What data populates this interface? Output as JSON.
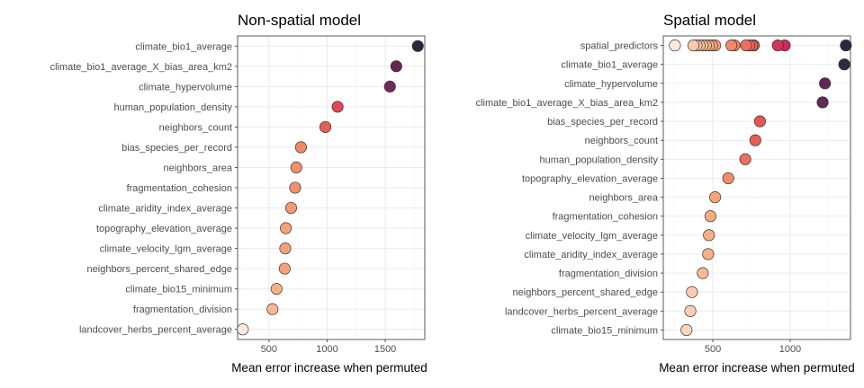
{
  "chart_data": [
    {
      "type": "scatter",
      "title": "Non-spatial model",
      "xlabel": "Mean error increase when permuted",
      "ylabel": "",
      "xlim": [
        230,
        1840
      ],
      "xticks": [
        500,
        1000,
        1500
      ],
      "grid": true,
      "categories": [
        "climate_bio1_average",
        "climate_bio1_average_X_bias_area_km2",
        "climate_hypervolume",
        "human_population_density",
        "neighbors_count",
        "bias_species_per_record",
        "neighbors_area",
        "fragmentation_cohesion",
        "climate_aridity_index_average",
        "topography_elevation_average",
        "climate_velocity_lgm_average",
        "neighbors_percent_shared_edge",
        "climate_bio15_minimum",
        "fragmentation_division",
        "landcover_herbs_percent_average"
      ],
      "points": [
        {
          "y": "climate_bio1_average",
          "x": 1780
        },
        {
          "y": "climate_bio1_average_X_bias_area_km2",
          "x": 1595
        },
        {
          "y": "climate_hypervolume",
          "x": 1540
        },
        {
          "y": "human_population_density",
          "x": 1090
        },
        {
          "y": "neighbors_count",
          "x": 985
        },
        {
          "y": "bias_species_per_record",
          "x": 775
        },
        {
          "y": "neighbors_area",
          "x": 735
        },
        {
          "y": "fragmentation_cohesion",
          "x": 725
        },
        {
          "y": "climate_aridity_index_average",
          "x": 690
        },
        {
          "y": "topography_elevation_average",
          "x": 645
        },
        {
          "y": "climate_velocity_lgm_average",
          "x": 640
        },
        {
          "y": "neighbors_percent_shared_edge",
          "x": 635
        },
        {
          "y": "climate_bio15_minimum",
          "x": 565
        },
        {
          "y": "fragmentation_division",
          "x": 530
        },
        {
          "y": "landcover_herbs_percent_average",
          "x": 275
        }
      ]
    },
    {
      "type": "scatter",
      "title": "Spatial model",
      "xlabel": "Mean error increase when permuted",
      "ylabel": "",
      "xlim": [
        180,
        1390
      ],
      "xticks": [
        500,
        1000
      ],
      "grid": true,
      "categories": [
        "spatial_predictors",
        "climate_bio1_average",
        "climate_hypervolume",
        "climate_bio1_average_X_bias_area_km2",
        "bias_species_per_record",
        "neighbors_count",
        "human_population_density",
        "topography_elevation_average",
        "neighbors_area",
        "fragmentation_cohesion",
        "climate_velocity_lgm_average",
        "climate_aridity_index_average",
        "fragmentation_division",
        "neighbors_percent_shared_edge",
        "landcover_herbs_percent_average",
        "climate_bio15_minimum"
      ],
      "points": [
        {
          "y": "spatial_predictors",
          "x": 1360
        },
        {
          "y": "spatial_predictors",
          "x": 965
        },
        {
          "y": "spatial_predictors",
          "x": 920
        },
        {
          "y": "spatial_predictors",
          "x": 765
        },
        {
          "y": "spatial_predictors",
          "x": 755
        },
        {
          "y": "spatial_predictors",
          "x": 735
        },
        {
          "y": "spatial_predictors",
          "x": 715
        },
        {
          "y": "spatial_predictors",
          "x": 640
        },
        {
          "y": "spatial_predictors",
          "x": 620
        },
        {
          "y": "spatial_predictors",
          "x": 515
        },
        {
          "y": "spatial_predictors",
          "x": 495
        },
        {
          "y": "spatial_predictors",
          "x": 475
        },
        {
          "y": "spatial_predictors",
          "x": 455
        },
        {
          "y": "spatial_predictors",
          "x": 435
        },
        {
          "y": "spatial_predictors",
          "x": 415
        },
        {
          "y": "spatial_predictors",
          "x": 395
        },
        {
          "y": "spatial_predictors",
          "x": 375
        },
        {
          "y": "spatial_predictors",
          "x": 255
        },
        {
          "y": "climate_bio1_average",
          "x": 1350
        },
        {
          "y": "climate_hypervolume",
          "x": 1225
        },
        {
          "y": "climate_bio1_average_X_bias_area_km2",
          "x": 1210
        },
        {
          "y": "bias_species_per_record",
          "x": 805
        },
        {
          "y": "neighbors_count",
          "x": 775
        },
        {
          "y": "human_population_density",
          "x": 710
        },
        {
          "y": "topography_elevation_average",
          "x": 600
        },
        {
          "y": "neighbors_area",
          "x": 515
        },
        {
          "y": "fragmentation_cohesion",
          "x": 485
        },
        {
          "y": "climate_velocity_lgm_average",
          "x": 475
        },
        {
          "y": "climate_aridity_index_average",
          "x": 470
        },
        {
          "y": "fragmentation_division",
          "x": 435
        },
        {
          "y": "neighbors_percent_shared_edge",
          "x": 365
        },
        {
          "y": "landcover_herbs_percent_average",
          "x": 355
        },
        {
          "y": "climate_bio15_minimum",
          "x": 330
        }
      ]
    }
  ]
}
